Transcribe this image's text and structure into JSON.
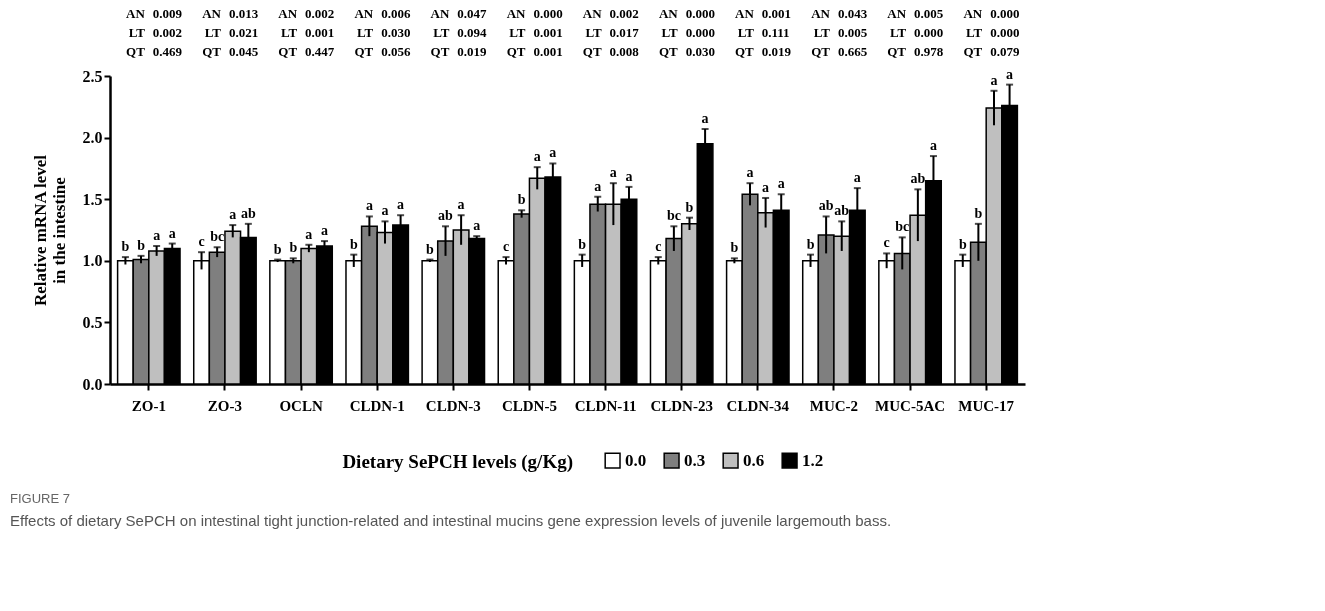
{
  "chart_data": {
    "type": "bar",
    "categories": [
      "ZO-1",
      "ZO-3",
      "OCLN",
      "CLDN-1",
      "CLDN-3",
      "CLDN-5",
      "CLDN-11",
      "CLDN-23",
      "CLDN-34",
      "MUC-2",
      "MUC-5AC",
      "MUC-17"
    ],
    "series": [
      {
        "name": "0.0",
        "color": "#ffffff",
        "values": [
          1.0,
          1.0,
          1.0,
          1.0,
          1.0,
          1.0,
          1.0,
          1.0,
          1.0,
          1.0,
          1.0,
          1.0
        ],
        "errors": [
          0.03,
          0.07,
          0.01,
          0.05,
          0.01,
          0.03,
          0.05,
          0.03,
          0.02,
          0.05,
          0.06,
          0.05
        ],
        "value_labels": [
          "b",
          "c",
          "b",
          "b",
          "b",
          "c",
          "b",
          "c",
          "b",
          "b",
          "c",
          "b"
        ]
      },
      {
        "name": "0.3",
        "color": "#7f7f7f",
        "values": [
          1.01,
          1.07,
          1.0,
          1.28,
          1.16,
          1.38,
          1.46,
          1.18,
          1.54,
          1.21,
          1.06,
          1.15
        ],
        "errors": [
          0.03,
          0.04,
          0.02,
          0.08,
          0.12,
          0.03,
          0.06,
          0.1,
          0.09,
          0.15,
          0.13,
          0.15
        ],
        "value_labels": [
          "b",
          "bc",
          "b",
          "a",
          "ab",
          "b",
          "a",
          "bc",
          "a",
          "ab",
          "bc",
          "b"
        ]
      },
      {
        "name": "0.6",
        "color": "#bfbfbf",
        "values": [
          1.08,
          1.24,
          1.1,
          1.23,
          1.25,
          1.67,
          1.46,
          1.3,
          1.39,
          1.2,
          1.37,
          2.24
        ],
        "errors": [
          0.04,
          0.05,
          0.03,
          0.09,
          0.12,
          0.09,
          0.17,
          0.05,
          0.12,
          0.12,
          0.21,
          0.14
        ],
        "value_labels": [
          "a",
          "a",
          "a",
          "a",
          "a",
          "a",
          "a",
          "b",
          "a",
          "ab",
          "ab",
          "a"
        ]
      },
      {
        "name": "1.2",
        "color": "#000000",
        "values": [
          1.1,
          1.19,
          1.12,
          1.29,
          1.18,
          1.68,
          1.5,
          1.95,
          1.41,
          1.41,
          1.65,
          2.26
        ],
        "errors": [
          0.04,
          0.11,
          0.04,
          0.08,
          0.02,
          0.11,
          0.1,
          0.12,
          0.13,
          0.18,
          0.2,
          0.17
        ],
        "value_labels": [
          "a",
          "ab",
          "a",
          "a",
          "a",
          "a",
          "a",
          "a",
          "a",
          "a",
          "a",
          "a"
        ]
      }
    ],
    "xlabel": "Dietary SePCH levels (g/Kg)",
    "ylabel": "Relative mRNA level\nin the intestine",
    "ylim": [
      0,
      2.5
    ],
    "yticks": [
      {
        "value": 0,
        "label": "0.0"
      },
      {
        "value": 0.5,
        "label": "0.5"
      },
      {
        "value": 1,
        "label": "1.0"
      },
      {
        "value": 1.5,
        "label": "1.5"
      },
      {
        "value": 2,
        "label": "2.0"
      },
      {
        "value": 2.5,
        "label": "2.5"
      }
    ],
    "grid": false,
    "legend": "bottom",
    "annotations": [
      "AN",
      "0.009",
      "LT",
      "0.002",
      "QT",
      "0.469",
      "AN",
      "0.013",
      "LT",
      "0.021",
      "QT",
      "0.045",
      "AN",
      "0.002",
      "LT",
      "0.001",
      "QT",
      "0.447",
      "AN",
      "0.006",
      "LT",
      "0.030",
      "QT",
      "0.056",
      "AN",
      "0.047",
      "LT",
      "0.094",
      "QT",
      "0.019",
      "AN",
      "0.000",
      "LT",
      "0.001",
      "QT",
      "0.001",
      "AN",
      "0.002",
      "LT",
      "0.017",
      "QT",
      "0.008",
      "AN",
      "0.000",
      "LT",
      "0.000",
      "QT",
      "0.030",
      "AN",
      "0.001",
      "LT",
      "0.111",
      "QT",
      "0.019",
      "AN",
      "0.043",
      "LT",
      "0.005",
      "QT",
      "0.665",
      "AN",
      "0.005",
      "LT",
      "0.000",
      "QT",
      "0.978",
      "AN",
      "0.000",
      "LT",
      "0.000",
      "QT",
      "0.079",
      "FIGURE 7",
      "Effects of dietary SePCH on intestinal tight junction-related and intestinal mucins gene expression levels of juvenile largemouth bass."
    ]
  }
}
